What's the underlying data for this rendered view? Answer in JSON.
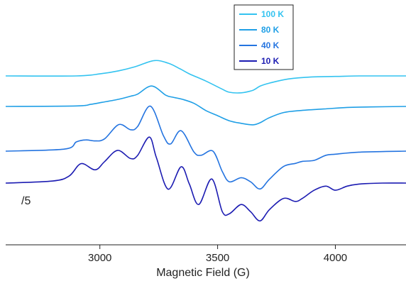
{
  "chart_data": {
    "type": "line",
    "title": "",
    "xlabel": "Magnetic Field (G)",
    "ylabel": "",
    "xlim": [
      2600,
      4300
    ],
    "x_ticks": [
      3000,
      3500,
      4000
    ],
    "x_tick_labels": [
      "3000",
      "3500",
      "4000"
    ],
    "grid": false,
    "legend_position": "top-right",
    "annotations": [
      {
        "text": "/5",
        "series": "10 K"
      }
    ],
    "series": [
      {
        "name": "100 K",
        "color": "#33c3f0",
        "baseline": 0,
        "x": [
          2600,
          2900,
          3000,
          3080,
          3150,
          3230,
          3290,
          3340,
          3380,
          3450,
          3520,
          3550,
          3600,
          3650,
          3680,
          3720,
          3800,
          3900,
          4000,
          4100,
          4200,
          4300
        ],
        "y": [
          0,
          0,
          4,
          10,
          18,
          30,
          25,
          14,
          4,
          -10,
          -26,
          -32,
          -33,
          -28,
          -20,
          -14,
          -6,
          -2,
          -1,
          0,
          0,
          0
        ]
      },
      {
        "name": "80 K",
        "color": "#1f9fe6",
        "baseline": 0,
        "x": [
          2600,
          2900,
          2960,
          3010,
          3080,
          3130,
          3160,
          3220,
          3280,
          3310,
          3350,
          3400,
          3450,
          3500,
          3550,
          3600,
          3650,
          3680,
          3720,
          3780,
          3850,
          3950,
          4050,
          4150,
          4300
        ],
        "y": [
          0,
          1,
          4,
          8,
          14,
          20,
          24,
          40,
          22,
          18,
          14,
          6,
          -8,
          -18,
          -28,
          -33,
          -36,
          -32,
          -22,
          -12,
          -8,
          -5,
          -2,
          -1,
          0
        ]
      },
      {
        "name": "40 K",
        "color": "#2474e0",
        "baseline": 0,
        "x": [
          2600,
          2850,
          2900,
          2940,
          2980,
          3020,
          3080,
          3130,
          3160,
          3215,
          3270,
          3300,
          3345,
          3400,
          3430,
          3480,
          3520,
          3550,
          3600,
          3640,
          3680,
          3720,
          3780,
          3830,
          3860,
          3910,
          3960,
          4000,
          4100,
          4300
        ],
        "y": [
          0,
          4,
          18,
          22,
          20,
          24,
          52,
          42,
          48,
          88,
          30,
          14,
          40,
          -2,
          -8,
          0,
          -40,
          -60,
          -52,
          -60,
          -74,
          -55,
          -30,
          -24,
          -20,
          -18,
          -8,
          -6,
          -2,
          0
        ]
      },
      {
        "name": "10 K",
        "color": "#1c1cb2",
        "baseline": 0,
        "x": [
          2600,
          2800,
          2870,
          2920,
          2980,
          3020,
          3075,
          3130,
          3160,
          3210,
          3240,
          3290,
          3345,
          3380,
          3420,
          3475,
          3520,
          3550,
          3600,
          3640,
          3680,
          3720,
          3780,
          3830,
          3860,
          3910,
          3960,
          4000,
          4050,
          4100,
          4200,
          4300
        ],
        "y": [
          0,
          4,
          14,
          38,
          26,
          42,
          64,
          48,
          54,
          90,
          50,
          -12,
          32,
          -2,
          -42,
          8,
          -56,
          -60,
          -42,
          -56,
          -74,
          -52,
          -30,
          -36,
          -30,
          -14,
          -6,
          -14,
          -6,
          -2,
          0,
          0
        ]
      }
    ]
  }
}
